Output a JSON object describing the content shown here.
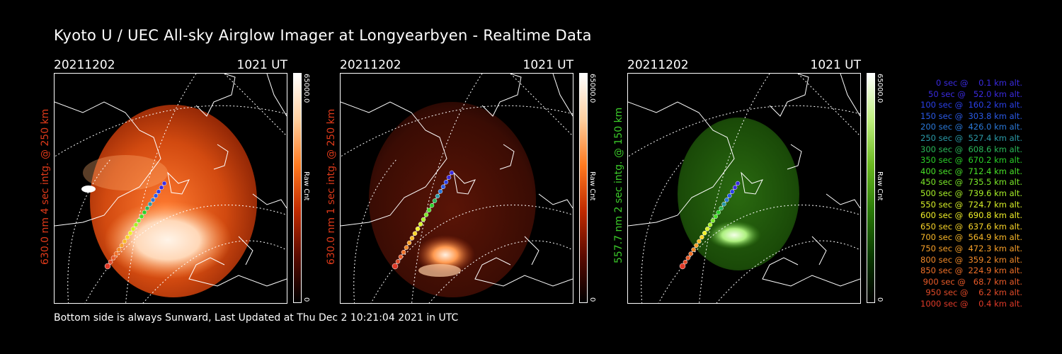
{
  "title": "Kyoto U / UEC All-sky Airglow Imager at Longyearbyen - Realtime Data",
  "footer": "Bottom side is always Sunward, Last Updated at Thu Dec  2 10:21:04 2021 in UTC",
  "panels": [
    {
      "date": "20211202",
      "time": "1021 UT",
      "side_label": "630.0 nm 4 sec intg. @ 250 km",
      "label_color": "#e03a1a",
      "colorbar_max": "65000.0",
      "colorbar_min": "0",
      "colorbar_title": "Raw Cnt",
      "scheme": "red",
      "brightness": "high"
    },
    {
      "date": "20211202",
      "time": "1021 UT",
      "side_label": "630.0 nm 1 sec intg. @ 250 km",
      "label_color": "#e03a1a",
      "colorbar_max": "65000.0",
      "colorbar_min": "0",
      "colorbar_title": "Raw Cnt",
      "scheme": "red",
      "brightness": "low"
    },
    {
      "date": "20211202",
      "time": "1021 UT",
      "side_label": "557.7 nm 2 sec intg. @ 150 km",
      "label_color": "#3ccc2a",
      "colorbar_max": "65000.0",
      "colorbar_min": "0",
      "colorbar_title": "Raw Cnt",
      "scheme": "green",
      "brightness": "low"
    }
  ],
  "legend": [
    {
      "text": "   0 sec @    0.1 km alt.",
      "color": "#3a2ae0"
    },
    {
      "text": "  50 sec @   52.0 km alt.",
      "color": "#3a2ae0"
    },
    {
      "text": " 100 sec @  160.2 km alt.",
      "color": "#2a40e8"
    },
    {
      "text": " 150 sec @  303.8 km alt.",
      "color": "#2a5ae8"
    },
    {
      "text": " 200 sec @  426.0 km alt.",
      "color": "#2a78d8"
    },
    {
      "text": " 250 sec @  527.4 km alt.",
      "color": "#2a9aa8"
    },
    {
      "text": " 300 sec @  608.6 km alt.",
      "color": "#2ab858"
    },
    {
      "text": " 350 sec @  670.2 km alt.",
      "color": "#2ad028"
    },
    {
      "text": " 400 sec @  712.4 km alt.",
      "color": "#48e028"
    },
    {
      "text": " 450 sec @  735.5 km alt.",
      "color": "#7ae828"
    },
    {
      "text": " 500 sec @  739.6 km alt.",
      "color": "#a8f028"
    },
    {
      "text": " 550 sec @  724.7 km alt.",
      "color": "#d8f028"
    },
    {
      "text": " 600 sec @  690.8 km alt.",
      "color": "#f0f028"
    },
    {
      "text": " 650 sec @  637.6 km alt.",
      "color": "#f8d428"
    },
    {
      "text": " 700 sec @  564.9 km alt.",
      "color": "#f8b828"
    },
    {
      "text": " 750 sec @  472.3 km alt.",
      "color": "#f8a028"
    },
    {
      "text": " 800 sec @  359.2 km alt.",
      "color": "#f08828"
    },
    {
      "text": " 850 sec @  224.9 km alt.",
      "color": "#f07028"
    },
    {
      "text": " 900 sec @   68.7 km alt.",
      "color": "#e85a28"
    },
    {
      "text": " 950 sec @    6.2 km alt.",
      "color": "#e04a28"
    },
    {
      "text": "1000 sec @    0.4 km alt.",
      "color": "#e03a28"
    }
  ]
}
